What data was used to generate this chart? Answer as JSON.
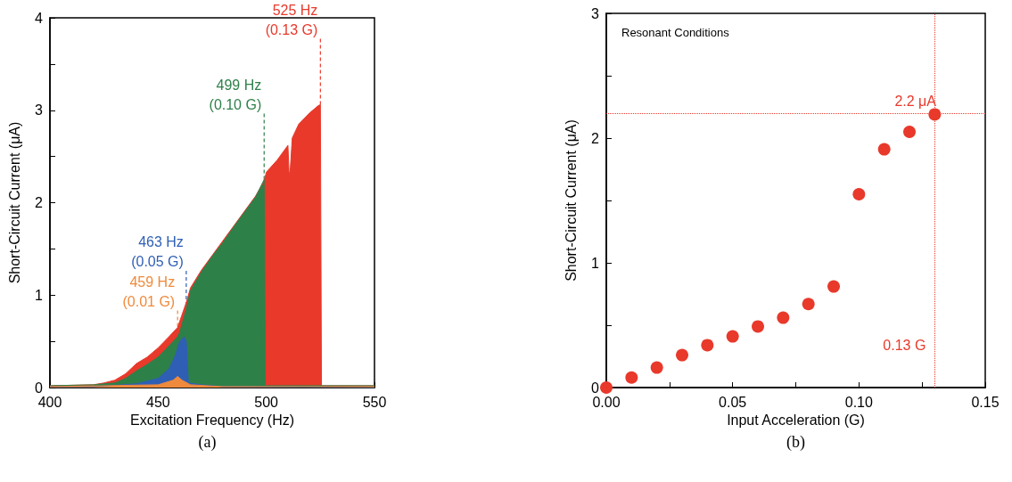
{
  "chart_data": [
    {
      "type": "area",
      "xlabel": "Excitation Frequency (Hz)",
      "ylabel": "Short-Circuit Current (μA)",
      "xlim": [
        400,
        550
      ],
      "ylim": [
        0,
        4
      ],
      "xticks": [
        400,
        450,
        500,
        550
      ],
      "yticks": [
        0,
        {
          "value": 0.5,
          "label": null
        },
        1,
        {
          "value": 1.5,
          "label": null
        },
        2,
        {
          "value": 2.5,
          "label": null
        },
        3,
        {
          "value": 3.5,
          "label": null
        },
        4
      ],
      "series": [
        {
          "color": "#e8392b",
          "x": [
            400,
            420,
            425,
            430,
            435,
            440,
            445,
            450,
            455,
            459,
            463,
            465,
            470,
            475,
            480,
            485,
            490,
            495,
            499,
            500,
            505,
            510,
            510.5,
            511,
            512,
            515,
            520,
            524,
            525,
            525.5,
            550
          ],
          "values": [
            0.02,
            0.03,
            0.05,
            0.08,
            0.15,
            0.26,
            0.33,
            0.43,
            0.55,
            0.65,
            0.92,
            1.08,
            1.27,
            1.43,
            1.59,
            1.75,
            1.91,
            2.07,
            2.23,
            2.33,
            2.46,
            2.62,
            2.33,
            2.33,
            2.7,
            2.85,
            2.97,
            3.05,
            3.06,
            0.02,
            0.02
          ]
        },
        {
          "color": "#2e8049",
          "x": [
            400,
            420,
            425,
            430,
            435,
            440,
            445,
            450,
            455,
            459,
            460,
            463,
            465,
            470,
            475,
            480,
            485,
            490,
            495,
            499,
            499.5,
            550
          ],
          "values": [
            0.02,
            0.03,
            0.04,
            0.05,
            0.1,
            0.18,
            0.25,
            0.33,
            0.45,
            0.55,
            0.6,
            0.85,
            1.05,
            1.25,
            1.42,
            1.57,
            1.74,
            1.9,
            2.06,
            2.25,
            0.02,
            0.02
          ]
        },
        {
          "color": "#2f5fb5",
          "x": [
            400,
            420,
            440,
            450,
            455,
            458,
            460,
            462,
            463,
            464,
            470,
            480,
            550
          ],
          "values": [
            0.01,
            0.01,
            0.04,
            0.1,
            0.2,
            0.35,
            0.5,
            0.55,
            0.5,
            0.05,
            0.03,
            0.01,
            0
          ]
        },
        {
          "color": "#ef8a3c",
          "x": [
            400,
            450,
            457,
            459,
            461,
            465,
            480,
            550
          ],
          "values": [
            0.01,
            0.03,
            0.08,
            0.12,
            0.08,
            0.03,
            0.01,
            0.01
          ]
        }
      ],
      "annotations": [
        {
          "text": "525 Hz\n(0.13 G)",
          "x": 525,
          "y": 3.06
        },
        {
          "text": "499 Hz\n(0.10 G)",
          "x": 499,
          "y": 2.25
        },
        {
          "text": "463 Hz\n(0.05 G)",
          "x": 463,
          "y": 0.55
        },
        {
          "text": "459 Hz\n(0.01 G)",
          "x": 459,
          "y": 0.12
        },
        "(a)"
      ]
    },
    {
      "type": "scatter",
      "title": "Resonant Conditions",
      "xlabel": "Input Acceleration (G)",
      "ylabel": "Short-Circuit Current (μA)",
      "xlim": [
        0,
        0.15
      ],
      "ylim": [
        0,
        3
      ],
      "xticks": [
        {
          "value": 0,
          "label": "0.00"
        },
        {
          "value": 0.025,
          "label": null
        },
        {
          "value": 0.05,
          "label": "0.05"
        },
        {
          "value": 0.075,
          "label": null
        },
        {
          "value": 0.1,
          "label": "0.10"
        },
        {
          "value": 0.125,
          "label": null
        },
        {
          "value": 0.15,
          "label": "0.15"
        }
      ],
      "yticks": [
        0,
        {
          "value": 0.5,
          "label": null
        },
        1,
        {
          "value": 1.5,
          "label": null
        },
        2,
        {
          "value": 2.5,
          "label": null
        },
        3
      ],
      "marker": "circle",
      "series": [
        {
          "color": "#e8392b",
          "x": [
            0,
            0.01,
            0.02,
            0.03,
            0.04,
            0.05,
            0.06,
            0.07,
            0.08,
            0.09,
            0.1,
            0.11,
            0.12,
            0.13
          ],
          "values": [
            0,
            0.08,
            0.16,
            0.26,
            0.34,
            0.41,
            0.49,
            0.56,
            0.67,
            0.81,
            1.55,
            1.91,
            2.05,
            2.19
          ]
        }
      ],
      "ref_lines": [
        {
          "axis": "y",
          "value": 2.2,
          "label": "2.2 μA",
          "color": "#e8392b",
          "line_style": "dotted"
        },
        {
          "axis": "x",
          "value": 0.13,
          "label": "0.13 G",
          "color": "#e8392b",
          "line_style": "dotted"
        }
      ],
      "annotations": [
        "(b)"
      ]
    }
  ]
}
